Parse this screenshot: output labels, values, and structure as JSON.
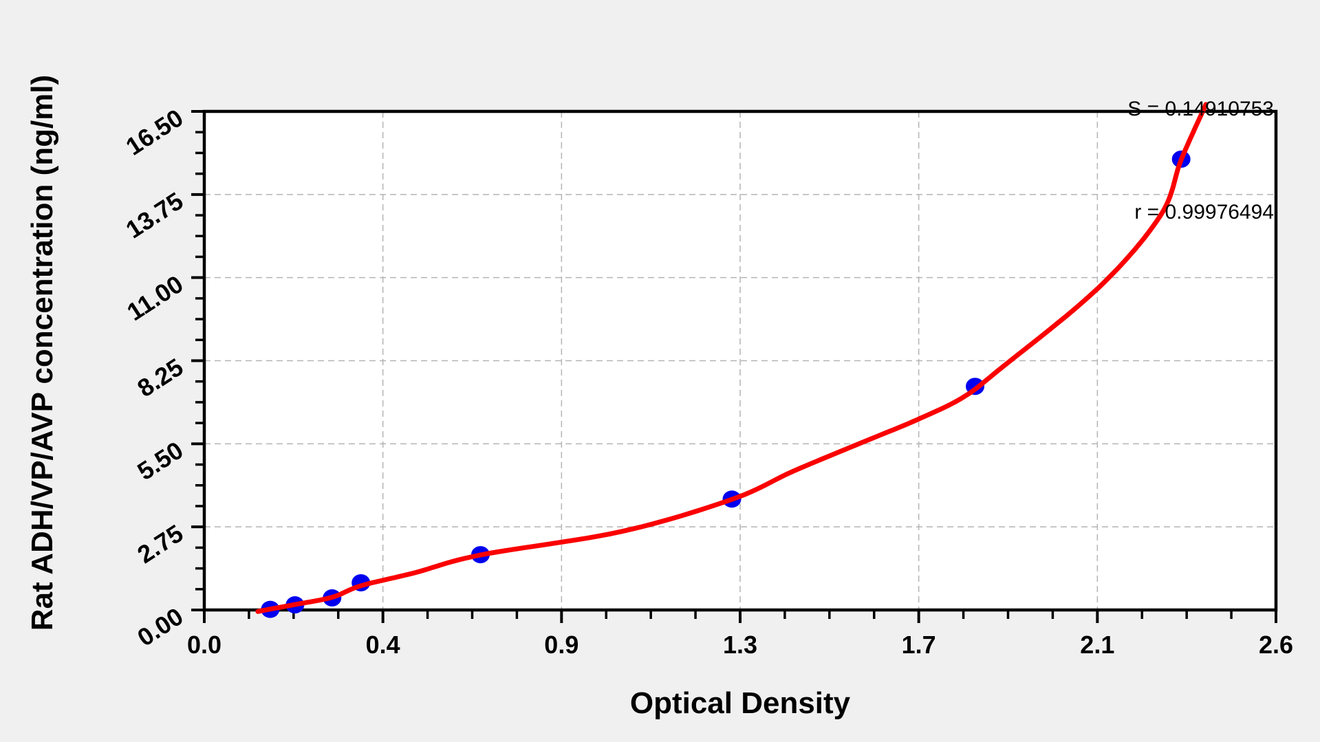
{
  "chart_data": {
    "type": "scatter",
    "title": "",
    "xlabel": "Optical Density",
    "ylabel": "Rat ADH/VP/AVP concentration (ng/ml)",
    "stats": {
      "s_label": "S = 0.14910753",
      "r_label": "r = 0.99976494",
      "S": 0.14910753,
      "r": 0.99976494
    },
    "x_axis": {
      "min": 0,
      "max": 2.6,
      "tick_labels": [
        "0.0",
        "0.4",
        "0.9",
        "1.3",
        "1.7",
        "2.1",
        "2.6"
      ],
      "minor_ticks_between_majors": 3,
      "grid": "dashed"
    },
    "y_axis": {
      "min": 0,
      "max": 16.5,
      "tick_labels": [
        "0.00",
        "2.75",
        "5.50",
        "8.25",
        "11.00",
        "13.75",
        "16.50"
      ],
      "minor_ticks_between_majors": 3,
      "grid": "dashed"
    },
    "points": [
      {
        "od": 0.16,
        "conc": 0.02
      },
      {
        "od": 0.22,
        "conc": 0.17
      },
      {
        "od": 0.31,
        "conc": 0.4
      },
      {
        "od": 0.38,
        "conc": 0.9
      },
      {
        "od": 0.67,
        "conc": 1.83
      },
      {
        "od": 1.28,
        "conc": 3.67
      },
      {
        "od": 1.87,
        "conc": 7.4
      },
      {
        "od": 2.37,
        "conc": 14.92
      }
    ],
    "curve": [
      [
        0.13,
        -0.05
      ],
      [
        0.16,
        0.03
      ],
      [
        0.22,
        0.18
      ],
      [
        0.31,
        0.42
      ],
      [
        0.38,
        0.8
      ],
      [
        0.51,
        1.23
      ],
      [
        0.67,
        1.82
      ],
      [
        1.01,
        2.59
      ],
      [
        1.28,
        3.66
      ],
      [
        1.43,
        4.6
      ],
      [
        1.59,
        5.51
      ],
      [
        1.73,
        6.3
      ],
      [
        1.84,
        7.03
      ],
      [
        1.93,
        7.97
      ],
      [
        2.17,
        10.67
      ],
      [
        2.32,
        13.06
      ],
      [
        2.37,
        14.9
      ],
      [
        2.43,
        16.73
      ]
    ],
    "colors": {
      "point": "#0000ee",
      "curve": "#fa0000",
      "grid": "#b4b4b4",
      "axis": "#000000",
      "plot_bg": "#ffffff",
      "page_bg": "#f0f0f0"
    }
  }
}
